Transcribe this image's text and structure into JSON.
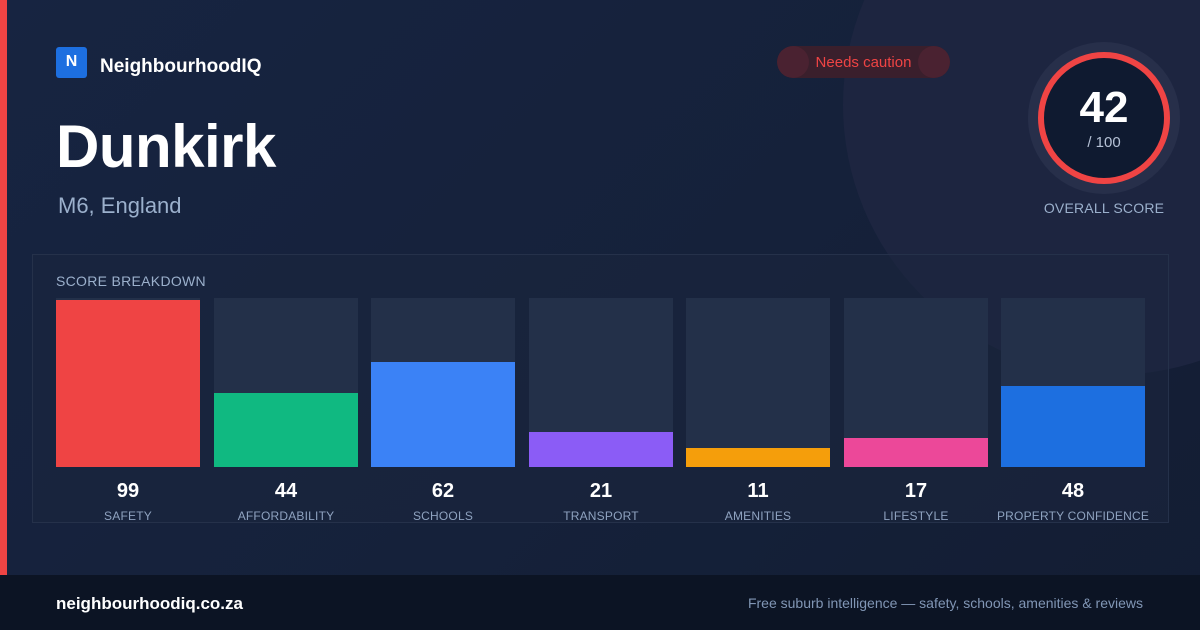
{
  "brand": {
    "logo_letter": "N",
    "name": "NeighbourhoodIQ"
  },
  "badge": {
    "label": "Needs caution",
    "color": "#ef4444"
  },
  "place": {
    "title": "Dunkirk",
    "subtitle": "M6, England"
  },
  "overall": {
    "score": "42",
    "max": "/ 100",
    "caption": "OVERALL SCORE",
    "ring_color": "#ef4444"
  },
  "breakdown": {
    "title": "SCORE BREAKDOWN",
    "max": 100,
    "items": [
      {
        "label": "SAFETY",
        "value": 99,
        "display": "99",
        "color": "#ef4444"
      },
      {
        "label": "AFFORDABILITY",
        "value": 44,
        "display": "44",
        "color": "#10b981"
      },
      {
        "label": "SCHOOLS",
        "value": 62,
        "display": "62",
        "color": "#3b82f6"
      },
      {
        "label": "TRANSPORT",
        "value": 21,
        "display": "21",
        "color": "#8b5cf6"
      },
      {
        "label": "AMENITIES",
        "value": 11,
        "display": "11",
        "color": "#f59e0b"
      },
      {
        "label": "LIFESTYLE",
        "value": 17,
        "display": "17",
        "color": "#ec4899"
      },
      {
        "label": "PROPERTY CONFIDENCE",
        "value": 48,
        "display": "48",
        "color": "#1d6fe0"
      }
    ]
  },
  "footer": {
    "site": "neighbourhoodiq.co.za",
    "tagline": "Free suburb intelligence — safety, schools, amenities & reviews"
  },
  "colors": {
    "accent": "#ef4444",
    "brand": "#1d6fe0",
    "background": "#15213a"
  }
}
